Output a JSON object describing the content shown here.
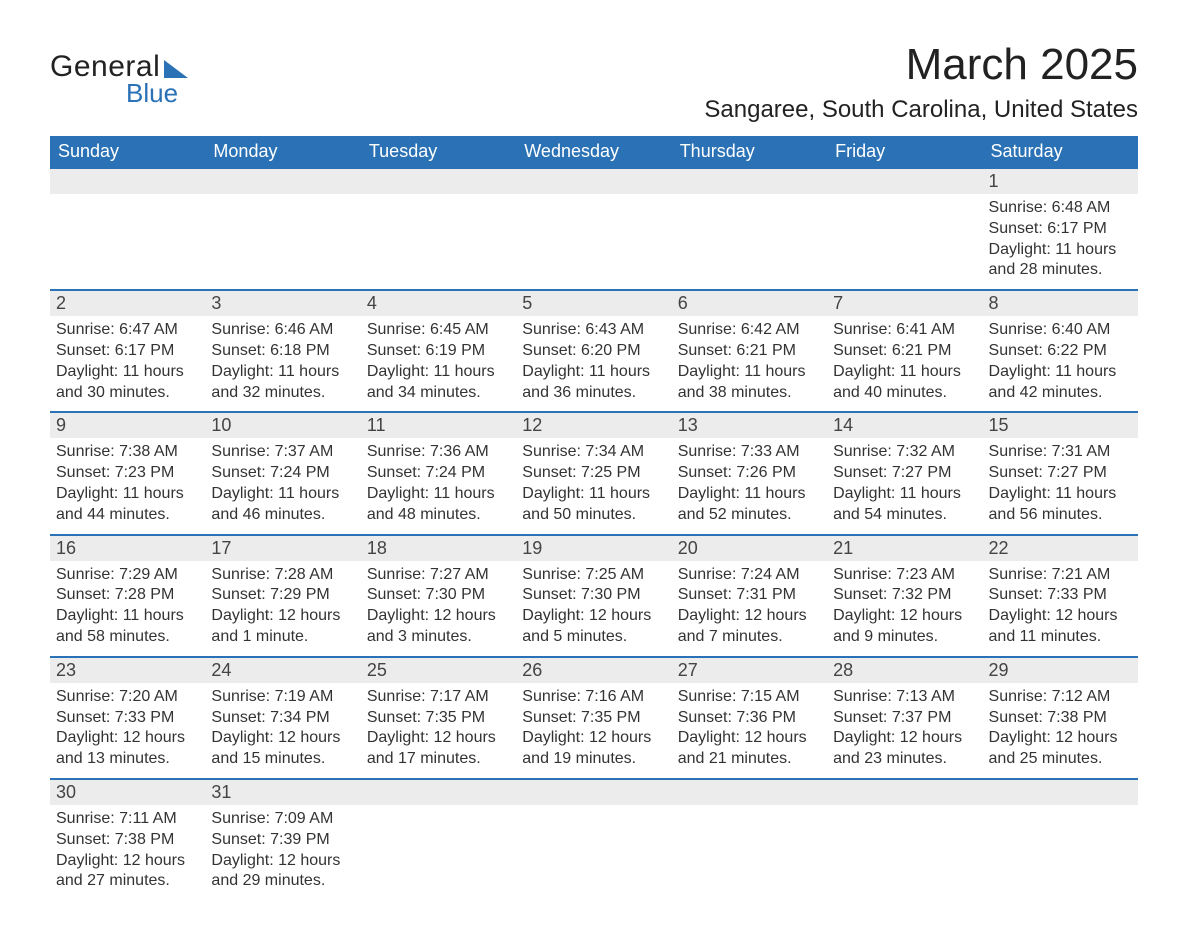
{
  "brand": {
    "word1": "General",
    "word2": "Blue",
    "accent_color": "#2a72b5"
  },
  "title": "March 2025",
  "location": "Sangaree, South Carolina, United States",
  "weekday_headers": [
    "Sunday",
    "Monday",
    "Tuesday",
    "Wednesday",
    "Thursday",
    "Friday",
    "Saturday"
  ],
  "colors": {
    "header_bg": "#2a72b5",
    "header_text": "#ffffff",
    "daynum_bg": "#ececec",
    "row_divider": "#2a72b5",
    "body_text": "#333333",
    "page_bg": "#ffffff"
  },
  "typography": {
    "title_fontsize": 44,
    "location_fontsize": 24,
    "weekday_fontsize": 18,
    "daynum_fontsize": 18,
    "detail_fontsize": 16,
    "font_family": "Arial"
  },
  "labels": {
    "sunrise_prefix": "Sunrise: ",
    "sunset_prefix": "Sunset: ",
    "daylight_prefix": "Daylight: "
  },
  "weeks": [
    [
      null,
      null,
      null,
      null,
      null,
      null,
      {
        "day": "1",
        "sunrise": "6:48 AM",
        "sunset": "6:17 PM",
        "daylight": "11 hours and 28 minutes."
      }
    ],
    [
      {
        "day": "2",
        "sunrise": "6:47 AM",
        "sunset": "6:17 PM",
        "daylight": "11 hours and 30 minutes."
      },
      {
        "day": "3",
        "sunrise": "6:46 AM",
        "sunset": "6:18 PM",
        "daylight": "11 hours and 32 minutes."
      },
      {
        "day": "4",
        "sunrise": "6:45 AM",
        "sunset": "6:19 PM",
        "daylight": "11 hours and 34 minutes."
      },
      {
        "day": "5",
        "sunrise": "6:43 AM",
        "sunset": "6:20 PM",
        "daylight": "11 hours and 36 minutes."
      },
      {
        "day": "6",
        "sunrise": "6:42 AM",
        "sunset": "6:21 PM",
        "daylight": "11 hours and 38 minutes."
      },
      {
        "day": "7",
        "sunrise": "6:41 AM",
        "sunset": "6:21 PM",
        "daylight": "11 hours and 40 minutes."
      },
      {
        "day": "8",
        "sunrise": "6:40 AM",
        "sunset": "6:22 PM",
        "daylight": "11 hours and 42 minutes."
      }
    ],
    [
      {
        "day": "9",
        "sunrise": "7:38 AM",
        "sunset": "7:23 PM",
        "daylight": "11 hours and 44 minutes."
      },
      {
        "day": "10",
        "sunrise": "7:37 AM",
        "sunset": "7:24 PM",
        "daylight": "11 hours and 46 minutes."
      },
      {
        "day": "11",
        "sunrise": "7:36 AM",
        "sunset": "7:24 PM",
        "daylight": "11 hours and 48 minutes."
      },
      {
        "day": "12",
        "sunrise": "7:34 AM",
        "sunset": "7:25 PM",
        "daylight": "11 hours and 50 minutes."
      },
      {
        "day": "13",
        "sunrise": "7:33 AM",
        "sunset": "7:26 PM",
        "daylight": "11 hours and 52 minutes."
      },
      {
        "day": "14",
        "sunrise": "7:32 AM",
        "sunset": "7:27 PM",
        "daylight": "11 hours and 54 minutes."
      },
      {
        "day": "15",
        "sunrise": "7:31 AM",
        "sunset": "7:27 PM",
        "daylight": "11 hours and 56 minutes."
      }
    ],
    [
      {
        "day": "16",
        "sunrise": "7:29 AM",
        "sunset": "7:28 PM",
        "daylight": "11 hours and 58 minutes."
      },
      {
        "day": "17",
        "sunrise": "7:28 AM",
        "sunset": "7:29 PM",
        "daylight": "12 hours and 1 minute."
      },
      {
        "day": "18",
        "sunrise": "7:27 AM",
        "sunset": "7:30 PM",
        "daylight": "12 hours and 3 minutes."
      },
      {
        "day": "19",
        "sunrise": "7:25 AM",
        "sunset": "7:30 PM",
        "daylight": "12 hours and 5 minutes."
      },
      {
        "day": "20",
        "sunrise": "7:24 AM",
        "sunset": "7:31 PM",
        "daylight": "12 hours and 7 minutes."
      },
      {
        "day": "21",
        "sunrise": "7:23 AM",
        "sunset": "7:32 PM",
        "daylight": "12 hours and 9 minutes."
      },
      {
        "day": "22",
        "sunrise": "7:21 AM",
        "sunset": "7:33 PM",
        "daylight": "12 hours and 11 minutes."
      }
    ],
    [
      {
        "day": "23",
        "sunrise": "7:20 AM",
        "sunset": "7:33 PM",
        "daylight": "12 hours and 13 minutes."
      },
      {
        "day": "24",
        "sunrise": "7:19 AM",
        "sunset": "7:34 PM",
        "daylight": "12 hours and 15 minutes."
      },
      {
        "day": "25",
        "sunrise": "7:17 AM",
        "sunset": "7:35 PM",
        "daylight": "12 hours and 17 minutes."
      },
      {
        "day": "26",
        "sunrise": "7:16 AM",
        "sunset": "7:35 PM",
        "daylight": "12 hours and 19 minutes."
      },
      {
        "day": "27",
        "sunrise": "7:15 AM",
        "sunset": "7:36 PM",
        "daylight": "12 hours and 21 minutes."
      },
      {
        "day": "28",
        "sunrise": "7:13 AM",
        "sunset": "7:37 PM",
        "daylight": "12 hours and 23 minutes."
      },
      {
        "day": "29",
        "sunrise": "7:12 AM",
        "sunset": "7:38 PM",
        "daylight": "12 hours and 25 minutes."
      }
    ],
    [
      {
        "day": "30",
        "sunrise": "7:11 AM",
        "sunset": "7:38 PM",
        "daylight": "12 hours and 27 minutes."
      },
      {
        "day": "31",
        "sunrise": "7:09 AM",
        "sunset": "7:39 PM",
        "daylight": "12 hours and 29 minutes."
      },
      null,
      null,
      null,
      null,
      null
    ]
  ]
}
